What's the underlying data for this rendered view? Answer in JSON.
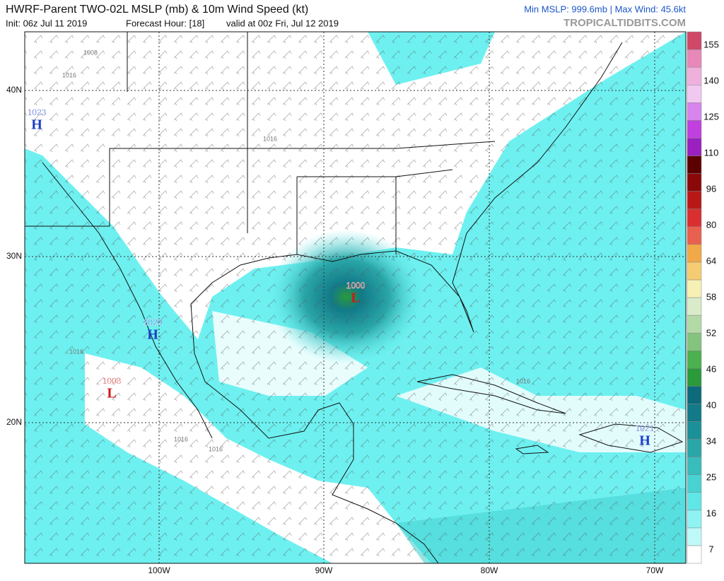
{
  "header": {
    "title": "HWRF-Parent TWO-02L MSLP (mb) & 10m Wind Speed (kt)",
    "init": "Init: 06z Jul 11 2019",
    "forecast_hour": "Forecast Hour: [18]",
    "valid": "valid at 00z Fri, Jul 12 2019",
    "stats": "Min MSLP: 999.6mb | Max Wind: 45.6kt",
    "credit": "TROPICALTIDBITS.COM"
  },
  "map": {
    "lat_labels": [
      "40N",
      "30N",
      "20N"
    ],
    "lon_labels": [
      "100W",
      "90W",
      "80W",
      "70W"
    ],
    "centers": [
      {
        "kind": "H",
        "value": "1023"
      },
      {
        "kind": "H",
        "value": "1020"
      },
      {
        "kind": "L",
        "value": "1008"
      },
      {
        "kind": "L",
        "value": "1000"
      },
      {
        "kind": "H",
        "value": "1021"
      }
    ],
    "isobar_labels": [
      "1008",
      "1016",
      "1016",
      "1016",
      "1016",
      "1016",
      "1016"
    ]
  },
  "colorbar": {
    "labels": [
      "7",
      "16",
      "25",
      "34",
      "40",
      "46",
      "52",
      "58",
      "64",
      "80",
      "96",
      "110",
      "125",
      "140",
      "155"
    ],
    "colors": [
      "#ffffff",
      "#bff9f9",
      "#8ff3f3",
      "#5fe6e6",
      "#48d2d2",
      "#38bcbc",
      "#2aa6a8",
      "#1c9098",
      "#127a88",
      "#0c6a7a",
      "#2a9a3a",
      "#4caf50",
      "#84c47e",
      "#b2d9a6",
      "#d9ebc8",
      "#f6f0b4",
      "#f5cc72",
      "#f0a848",
      "#e86050",
      "#d83030",
      "#b81818",
      "#8a0808",
      "#5c0000",
      "#9a20c0",
      "#c040e0",
      "#d884ee",
      "#f0c8f0",
      "#f0b0dc",
      "#e888b8",
      "#d04868"
    ]
  }
}
